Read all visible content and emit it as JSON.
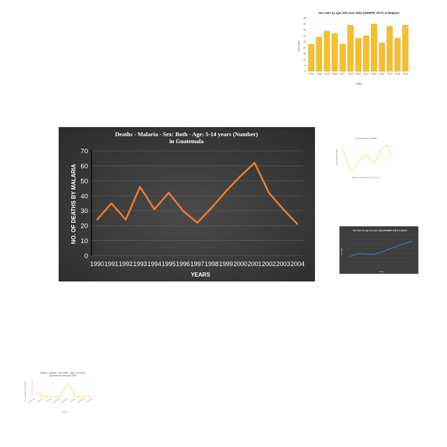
{
  "chart_data": [
    {
      "type": "line",
      "title": "Deaths - Malaria - Sex: Both - Age: 5-14 years (Number) in Guatemala",
      "xlabel": "YEARS",
      "ylabel": "NO. OF DEATHS BY MALARIA",
      "categories": [
        "1990",
        "1991",
        "1992",
        "1993",
        "1994",
        "1995",
        "1996",
        "1997",
        "1998",
        "1999",
        "2000",
        "2001",
        "2002",
        "2003",
        "2004"
      ],
      "series": [
        {
          "values": [
            24,
            35,
            24,
            46,
            31,
            42,
            30,
            22,
            32,
            43,
            53,
            62,
            42,
            31,
            21
          ]
        }
      ],
      "ylim": [
        0,
        70
      ],
      "yticks": [
        0,
        10,
        20,
        30,
        40,
        50,
        60,
        70
      ],
      "grid": true,
      "colors": {
        "background": "#3e3e3e",
        "line": "#ed7d31",
        "text": "#ffffff",
        "grid": "#5a5a5a"
      }
    },
    {
      "type": "bar",
      "title": "Sex ratio by age (100 year olds) (UNWPP, 2017) in Belgium",
      "xlabel": "Years",
      "ylabel": "Sex Ratio",
      "categories": [
        "2003",
        "2004",
        "2005",
        "2006",
        "2007",
        "2008",
        "2009",
        "2010",
        "2011",
        "2012",
        "2013",
        "2014",
        "2015"
      ],
      "values": [
        23,
        29,
        34,
        32,
        23,
        39,
        28,
        30,
        40,
        24,
        38,
        28,
        39
      ],
      "ylim": [
        0,
        45
      ],
      "yticks": [
        0,
        5,
        10,
        15,
        20,
        25,
        30,
        35,
        40,
        45
      ],
      "colors": {
        "bar": "#f5c02c",
        "edge": "#c8961a"
      }
    },
    {
      "type": "line",
      "title": "Annual grams of NOTE",
      "xlabel": "Quantity of sewing work done from Tk",
      "ylabel": "Total production units",
      "x": [
        0,
        1,
        2,
        3,
        4,
        5,
        6,
        7,
        8,
        9,
        10,
        11,
        12,
        13,
        14
      ],
      "values": [
        0.9,
        0.55,
        0.2,
        0.1,
        0.28,
        0.42,
        0.52,
        0.62,
        0.48,
        0.35,
        0.5,
        0.82,
        0.95,
        0.98,
        0.52
      ],
      "ylim": [
        0,
        1.1
      ],
      "colors": {
        "line": "#f0e08a"
      }
    },
    {
      "type": "line",
      "title": "Sex ratio by age (10 year olds) (UNWPP, 2017) in Benin",
      "xlabel": "Years",
      "ylabel": "Sex Ratio",
      "categories": [
        "1990",
        "1991",
        "1992",
        "1993",
        "1994",
        "1995",
        "1996",
        "1997",
        "1998",
        "1999",
        "2000",
        "2001",
        "2002",
        "2003",
        "2004",
        "2005",
        "2006",
        "2007"
      ],
      "values": [
        102.2,
        102.5,
        102.8,
        102.9,
        102.8,
        102.8,
        102.7,
        102.8,
        103.0,
        103.3,
        103.6,
        103.9,
        104.2,
        104.5,
        104.8,
        105.1,
        105.3,
        105.6
      ],
      "ylim": [
        100,
        107
      ],
      "colors": {
        "background": "#3e3e3e",
        "line": "#4472c4"
      }
    },
    {
      "type": "line",
      "title": "Deaths - Malaria - Sex: Both - Age: 5-14 years (Number) for the year 2009",
      "xlabel": "Country",
      "ylabel": "No. of deaths by Malaria",
      "categories": [
        "Cambodia",
        "Comoros",
        "Eritrea",
        "Guatemala",
        "Mauritania",
        "Namibia",
        "Nicaragua",
        "Panama"
      ],
      "values": [
        15,
        2,
        0,
        0,
        40,
        0,
        0,
        0
      ],
      "ylim": [
        0,
        50
      ],
      "colors": {
        "line": "#ffd966"
      }
    }
  ]
}
